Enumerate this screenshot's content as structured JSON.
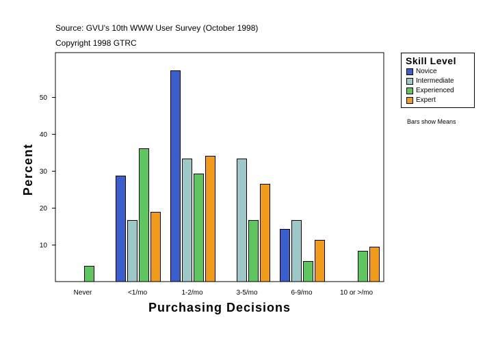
{
  "header": {
    "source": "Source: GVU's 10th WWW User Survey (October 1998)",
    "copyright": "Copyright 1998 GTRC"
  },
  "legend": {
    "title": "Skill Level",
    "items": [
      {
        "label": "Novice",
        "color": "#3a5fcd"
      },
      {
        "label": "Intermediate",
        "color": "#9ec8c8"
      },
      {
        "label": "Experienced",
        "color": "#5ec65e"
      },
      {
        "label": "Expert",
        "color": "#f29a1a"
      }
    ]
  },
  "note": "Bars show Means",
  "chart_data": {
    "type": "bar",
    "title": "",
    "xlabel": "Purchasing Decisions",
    "ylabel": "Percent",
    "categories": [
      "Never",
      "<1/mo",
      "1-2/mo",
      "3-5/mo",
      "6-9/mo",
      "10 or >/mo"
    ],
    "series": [
      {
        "name": "Novice",
        "values": [
          null,
          28.6,
          57.1,
          null,
          14.3,
          null
        ]
      },
      {
        "name": "Intermediate",
        "values": [
          null,
          16.7,
          33.3,
          33.3,
          16.7,
          null
        ]
      },
      {
        "name": "Experienced",
        "values": [
          4.2,
          36.1,
          29.2,
          16.7,
          5.6,
          8.3
        ]
      },
      {
        "name": "Expert",
        "values": [
          null,
          18.9,
          34.0,
          26.4,
          11.3,
          9.4
        ]
      }
    ],
    "yticks": [
      10,
      20,
      30,
      40,
      50
    ],
    "ylim": [
      0,
      62
    ],
    "grid": false,
    "legend_position": "right"
  }
}
